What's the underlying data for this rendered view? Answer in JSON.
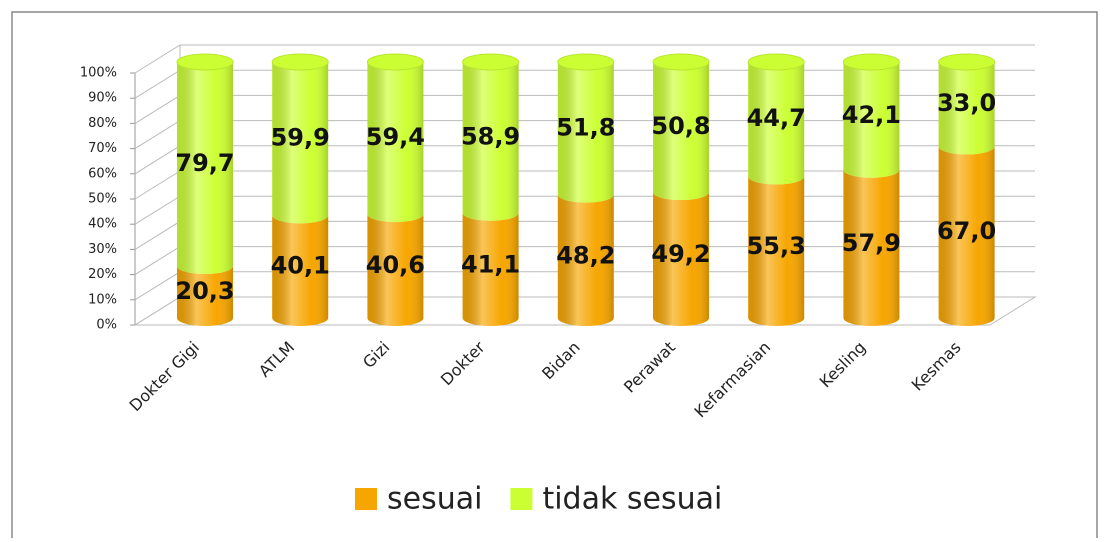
{
  "chart_data": {
    "type": "stacked-cylinder",
    "categories": [
      "Dokter Gigi",
      "ATLM",
      "Gizi",
      "Dokter",
      "Bidan",
      "Perawat",
      "Kefarmasian",
      "Kesling",
      "Kesmas"
    ],
    "series": [
      {
        "name": "sesuai",
        "color": "#f7a600",
        "values": [
          20.3,
          40.1,
          40.6,
          41.1,
          48.2,
          49.2,
          55.3,
          57.9,
          67.0
        ],
        "value_labels": [
          "20,3",
          "40,1",
          "40,6",
          "41,1",
          "48,2",
          "49,2",
          "55,3",
          "57,9",
          "67,0"
        ]
      },
      {
        "name": "tidak sesuai",
        "color": "#ccff33",
        "values": [
          79.7,
          59.9,
          59.4,
          58.9,
          51.8,
          50.8,
          44.7,
          42.1,
          33.0
        ],
        "value_labels": [
          "79,7",
          "59,9",
          "59,4",
          "58,9",
          "51,8",
          "50,8",
          "44,7",
          "42,1",
          "33,0"
        ]
      }
    ],
    "ylim": [
      0,
      100
    ],
    "yticks": [
      {
        "value": 0,
        "label": "0%"
      },
      {
        "value": 10,
        "label": "10%"
      },
      {
        "value": 20,
        "label": "20%"
      },
      {
        "value": 30,
        "label": "30%"
      },
      {
        "value": 40,
        "label": "40%"
      },
      {
        "value": 50,
        "label": "50%"
      },
      {
        "value": 60,
        "label": "60%"
      },
      {
        "value": 70,
        "label": "70%"
      },
      {
        "value": 80,
        "label": "80%"
      },
      {
        "value": 90,
        "label": "90%"
      },
      {
        "value": 100,
        "label": "100%"
      }
    ],
    "grid": true,
    "legend": "bottom"
  }
}
